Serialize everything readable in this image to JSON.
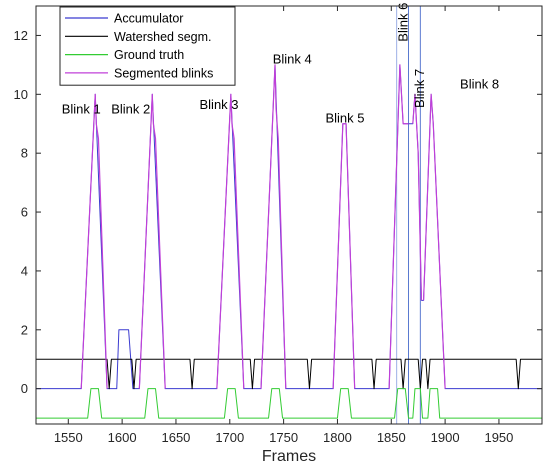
{
  "chart_data": {
    "type": "line",
    "title": "",
    "xlabel": "Frames",
    "ylabel": "",
    "xlim": [
      1520,
      1990
    ],
    "ylim": [
      -1.2,
      13
    ],
    "xticks": [
      1550,
      1600,
      1650,
      1700,
      1750,
      1800,
      1850,
      1900,
      1950
    ],
    "yticks": [
      0,
      2,
      4,
      6,
      8,
      10,
      12
    ],
    "grid": false,
    "legend": "top-left",
    "series": [
      {
        "name": "Accumulator",
        "color": "#3b3bd0",
        "points": [
          [
            1520,
            0
          ],
          [
            1562,
            0
          ],
          [
            1575,
            10
          ],
          [
            1586,
            0
          ],
          [
            1595,
            0
          ],
          [
            1597,
            2
          ],
          [
            1606,
            2
          ],
          [
            1610,
            0
          ],
          [
            1616,
            0
          ],
          [
            1628,
            10
          ],
          [
            1640,
            0
          ],
          [
            1688,
            0
          ],
          [
            1701,
            10
          ],
          [
            1713,
            0
          ],
          [
            1729,
            0
          ],
          [
            1742,
            11
          ],
          [
            1752,
            0
          ],
          [
            1796,
            0
          ],
          [
            1805,
            9
          ],
          [
            1808,
            9
          ],
          [
            1816,
            0
          ],
          [
            1848,
            0
          ],
          [
            1858,
            11
          ],
          [
            1861,
            9
          ],
          [
            1870,
            9
          ],
          [
            1872,
            10
          ],
          [
            1875,
            8
          ],
          [
            1878,
            3
          ],
          [
            1880,
            3
          ],
          [
            1887,
            10
          ],
          [
            1889,
            9
          ],
          [
            1900,
            0
          ],
          [
            1990,
            0
          ]
        ]
      },
      {
        "name": "Watershed segm.",
        "color": "#000000",
        "points": [
          [
            1520,
            1
          ],
          [
            1586,
            1
          ],
          [
            1588,
            0
          ],
          [
            1590,
            1
          ],
          [
            1609,
            1
          ],
          [
            1611,
            0
          ],
          [
            1613,
            1
          ],
          [
            1663,
            1
          ],
          [
            1665,
            0
          ],
          [
            1667,
            1
          ],
          [
            1719,
            1
          ],
          [
            1721,
            0
          ],
          [
            1723,
            1
          ],
          [
            1772,
            1
          ],
          [
            1774,
            0
          ],
          [
            1776,
            1
          ],
          [
            1832,
            1
          ],
          [
            1834,
            0
          ],
          [
            1836,
            1
          ],
          [
            1859,
            1
          ],
          [
            1861,
            0
          ],
          [
            1863,
            1
          ],
          [
            1875,
            1
          ],
          [
            1877,
            0
          ],
          [
            1879,
            1
          ],
          [
            1882,
            1
          ],
          [
            1884,
            0
          ],
          [
            1886,
            1
          ],
          [
            1966,
            1
          ],
          [
            1968,
            0
          ],
          [
            1970,
            1
          ],
          [
            1990,
            1
          ]
        ]
      },
      {
        "name": "Ground truth",
        "color": "#33cc33",
        "points": [
          [
            1520,
            -1
          ],
          [
            1568,
            -1
          ],
          [
            1571,
            0
          ],
          [
            1578,
            0
          ],
          [
            1581,
            -1
          ],
          [
            1621,
            -1
          ],
          [
            1624,
            0
          ],
          [
            1631,
            0
          ],
          [
            1634,
            -1
          ],
          [
            1695,
            -1
          ],
          [
            1698,
            0
          ],
          [
            1705,
            0
          ],
          [
            1708,
            -1
          ],
          [
            1736,
            -1
          ],
          [
            1739,
            0
          ],
          [
            1746,
            0
          ],
          [
            1749,
            -1
          ],
          [
            1800,
            -1
          ],
          [
            1803,
            0
          ],
          [
            1810,
            0
          ],
          [
            1813,
            -1
          ],
          [
            1853,
            -1
          ],
          [
            1856,
            0
          ],
          [
            1863,
            0
          ],
          [
            1866,
            -1
          ],
          [
            1870,
            -1
          ],
          [
            1872,
            0
          ],
          [
            1877,
            0
          ],
          [
            1879,
            -1
          ],
          [
            1884,
            -1
          ],
          [
            1886,
            0
          ],
          [
            1893,
            0
          ],
          [
            1895,
            -1
          ],
          [
            1990,
            -1
          ]
        ]
      },
      {
        "name": "Segmented blinks",
        "color": "#c040d8",
        "segments": [
          [
            [
              1562,
              0
            ],
            [
              1575,
              10
            ],
            [
              1576,
              9
            ],
            [
              1578,
              8.5
            ],
            [
              1586,
              0
            ]
          ],
          [
            [
              1616,
              0
            ],
            [
              1628,
              10
            ],
            [
              1629,
              9
            ],
            [
              1631,
              8.5
            ],
            [
              1640,
              0
            ]
          ],
          [
            [
              1688,
              0
            ],
            [
              1701,
              10
            ],
            [
              1702,
              9
            ],
            [
              1704,
              8.5
            ],
            [
              1713,
              0
            ]
          ],
          [
            [
              1729,
              0
            ],
            [
              1742,
              11
            ],
            [
              1743,
              9.5
            ],
            [
              1745,
              8.5
            ],
            [
              1752,
              0
            ]
          ],
          [
            [
              1796,
              0
            ],
            [
              1805,
              9
            ],
            [
              1808,
              9
            ],
            [
              1816,
              0
            ]
          ],
          [
            [
              1848,
              0
            ],
            [
              1858,
              11
            ],
            [
              1861,
              9
            ],
            [
              1866,
              9
            ]
          ],
          [
            [
              1870,
              9
            ],
            [
              1872,
              10
            ],
            [
              1875,
              8
            ],
            [
              1878,
              3
            ]
          ],
          [
            [
              1880,
              3
            ],
            [
              1887,
              10
            ],
            [
              1889,
              9
            ],
            [
              1900,
              0
            ]
          ]
        ]
      }
    ],
    "vlines": [
      {
        "x": 1855,
        "color": "#9db0e6"
      },
      {
        "x": 1866,
        "color": "#5a7ad0"
      },
      {
        "x": 1877,
        "color": "#5a7ad0"
      }
    ],
    "annotations": [
      {
        "text": "Blink 1",
        "x": 1562,
        "y": 9.35,
        "rotate": false
      },
      {
        "text": "Blink 2",
        "x": 1608,
        "y": 9.35,
        "rotate": false
      },
      {
        "text": "Blink 3",
        "x": 1690,
        "y": 9.5,
        "rotate": false
      },
      {
        "text": "Blink 4",
        "x": 1758,
        "y": 11.05,
        "rotate": false
      },
      {
        "text": "Blink 5",
        "x": 1807,
        "y": 9.05,
        "rotate": false
      },
      {
        "text": "Blink 6",
        "x": 1862,
        "y": 12.45,
        "rotate": true
      },
      {
        "text": "Blink 7",
        "x": 1877,
        "y": 10.2,
        "rotate": true
      },
      {
        "text": "Blink 8",
        "x": 1932,
        "y": 10.2,
        "rotate": false
      }
    ]
  }
}
